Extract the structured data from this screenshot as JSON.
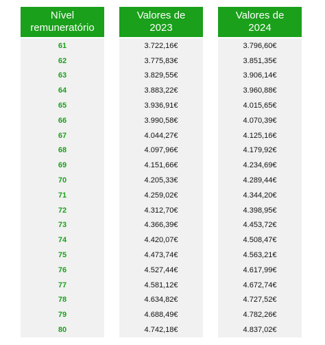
{
  "headers": {
    "level": "Nível\nremuneratório",
    "y2023": "Valores de\n2023",
    "y2024": "Valores de\n2024"
  },
  "rows": [
    {
      "level": "61",
      "v2023": "3.722,16€",
      "v2024": "3.796,60€"
    },
    {
      "level": "62",
      "v2023": "3.775,83€",
      "v2024": "3.851,35€"
    },
    {
      "level": "63",
      "v2023": "3.829,55€",
      "v2024": "3.906,14€"
    },
    {
      "level": "64",
      "v2023": "3.883,22€",
      "v2024": "3.960,88€"
    },
    {
      "level": "65",
      "v2023": "3.936,91€",
      "v2024": "4.015,65€"
    },
    {
      "level": "66",
      "v2023": "3.990,58€",
      "v2024": "4.070,39€"
    },
    {
      "level": "67",
      "v2023": "4.044,27€",
      "v2024": "4.125,16€"
    },
    {
      "level": "68",
      "v2023": "4.097,96€",
      "v2024": "4.179,92€"
    },
    {
      "level": "69",
      "v2023": "4.151,66€",
      "v2024": "4.234,69€"
    },
    {
      "level": "70",
      "v2023": "4.205,33€",
      "v2024": "4.289,44€"
    },
    {
      "level": "71",
      "v2023": "4.259,02€",
      "v2024": "4.344,20€"
    },
    {
      "level": "72",
      "v2023": "4.312,70€",
      "v2024": "4.398,95€"
    },
    {
      "level": "73",
      "v2023": "4.366,39€",
      "v2024": "4.453,72€"
    },
    {
      "level": "74",
      "v2023": "4.420,07€",
      "v2024": "4.508,47€"
    },
    {
      "level": "75",
      "v2023": "4.473,74€",
      "v2024": "4.563,21€"
    },
    {
      "level": "76",
      "v2023": "4.527,44€",
      "v2024": "4.617,99€"
    },
    {
      "level": "77",
      "v2023": "4.581,12€",
      "v2024": "4.672,74€"
    },
    {
      "level": "78",
      "v2023": "4.634,82€",
      "v2024": "4.727,52€"
    },
    {
      "level": "79",
      "v2023": "4.688,49€",
      "v2024": "4.782,26€"
    },
    {
      "level": "80",
      "v2023": "4.742,18€",
      "v2024": "4.837,02€"
    }
  ],
  "colors": {
    "header_bg": "#1aa01a",
    "header_text": "#ffffff",
    "level_text": "#1aa01a",
    "body_bg": "#f1f1f1",
    "value_text": "#111111"
  }
}
